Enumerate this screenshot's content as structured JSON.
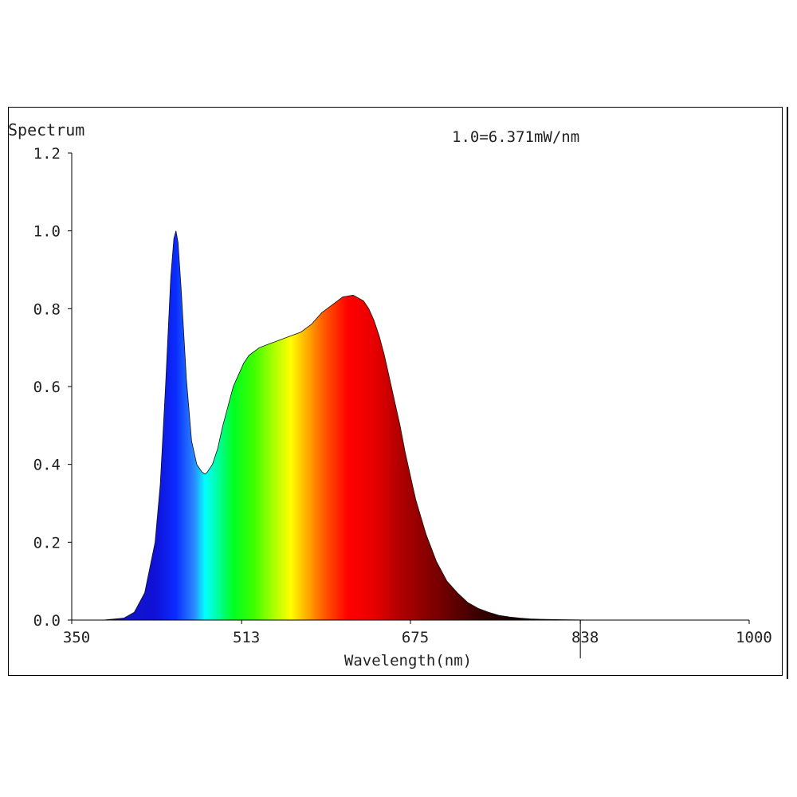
{
  "chart_data": {
    "type": "area",
    "title": "Spectrum",
    "scale_note": "1.0=6.371mW/nm",
    "xlabel": "Wavelength(nm)",
    "ylabel": "",
    "xlim": [
      350,
      1000
    ],
    "ylim": [
      0,
      1.2
    ],
    "x_ticks": [
      350,
      513,
      675,
      838,
      1000
    ],
    "x_tick_labels": [
      "350",
      "513",
      "675",
      "838",
      "1000"
    ],
    "y_ticks": [
      0.0,
      0.2,
      0.4,
      0.6,
      0.8,
      1.0,
      1.2
    ],
    "y_tick_labels": [
      "0.0",
      "0.2",
      "0.4",
      "0.6",
      "0.8",
      "1.0",
      "1.2"
    ],
    "marker_x": 838,
    "grid": false,
    "fill": "visible-spectrum gradient",
    "series": [
      {
        "x": [
          350,
          380,
          400,
          410,
          420,
          430,
          435,
          440,
          445,
          448,
          450,
          452,
          455,
          460,
          465,
          470,
          475,
          478,
          480,
          485,
          490,
          495,
          500,
          505,
          510,
          515,
          520,
          530,
          540,
          550,
          560,
          570,
          580,
          590,
          600,
          610,
          620,
          630,
          635,
          640,
          645,
          650,
          655,
          660,
          665,
          670,
          675,
          680,
          690,
          700,
          710,
          720,
          730,
          740,
          750,
          760,
          770,
          780,
          790,
          800,
          820,
          850,
          900,
          950,
          1000
        ],
        "y": [
          0.0,
          0.0,
          0.005,
          0.02,
          0.07,
          0.2,
          0.35,
          0.6,
          0.88,
          0.98,
          1.0,
          0.97,
          0.85,
          0.62,
          0.46,
          0.4,
          0.38,
          0.375,
          0.38,
          0.4,
          0.44,
          0.5,
          0.55,
          0.6,
          0.63,
          0.66,
          0.68,
          0.7,
          0.71,
          0.72,
          0.73,
          0.74,
          0.76,
          0.79,
          0.81,
          0.83,
          0.835,
          0.82,
          0.8,
          0.77,
          0.73,
          0.68,
          0.62,
          0.56,
          0.5,
          0.43,
          0.37,
          0.31,
          0.22,
          0.15,
          0.1,
          0.07,
          0.045,
          0.03,
          0.02,
          0.012,
          0.008,
          0.005,
          0.003,
          0.002,
          0.001,
          0.0,
          0.0,
          0.0,
          0.0
        ]
      }
    ]
  }
}
